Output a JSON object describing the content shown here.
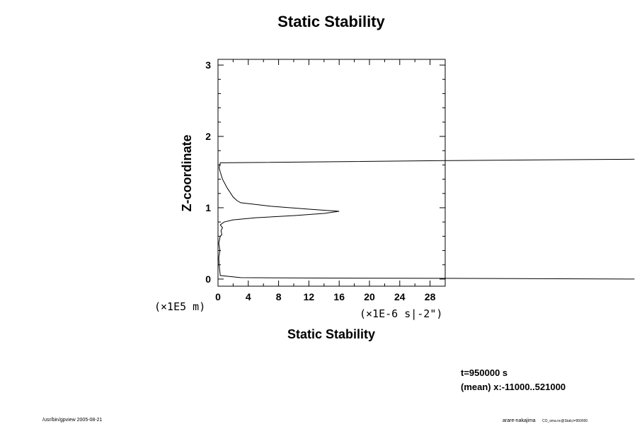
{
  "chart_data": {
    "type": "line",
    "title": "Static Stability",
    "xlabel": "Static Stability",
    "ylabel": "Z-coordinate",
    "x_unit_label": "(×1E-6 s|-2\")",
    "y_unit_label": "(×1E5 m)",
    "xlim": [
      0,
      30
    ],
    "ylim": [
      -0.1,
      3.08
    ],
    "x_ticks": [
      0,
      4,
      8,
      12,
      16,
      20,
      24,
      28
    ],
    "x_tick_labels": [
      "0",
      "4",
      "8",
      "12",
      "16",
      "20",
      "24",
      "28"
    ],
    "y_ticks": [
      0,
      1,
      2,
      3
    ],
    "y_tick_labels": [
      "0",
      "1",
      "2",
      "3"
    ],
    "grid": false,
    "series": [
      {
        "x": [
          55,
          30,
          12,
          3,
          0.3,
          0.15,
          0.1,
          0.25,
          0.1,
          0.2,
          0.3,
          0.5,
          0.4,
          0.6,
          0.3,
          0.8,
          2.0,
          5.0,
          10.0,
          14.0,
          16.0,
          12.0,
          7.0,
          3.0,
          2.5,
          2.0,
          1.2,
          0.6,
          0.3,
          0.15,
          0.3,
          30,
          55
        ],
        "y": [
          0.0,
          0.01,
          0.015,
          0.02,
          0.05,
          0.2,
          0.3,
          0.4,
          0.5,
          0.55,
          0.6,
          0.62,
          0.68,
          0.72,
          0.76,
          0.8,
          0.83,
          0.86,
          0.89,
          0.92,
          0.95,
          0.98,
          1.02,
          1.07,
          1.1,
          1.15,
          1.28,
          1.4,
          1.5,
          1.56,
          1.63,
          1.66,
          1.68
        ]
      }
    ]
  },
  "info": {
    "time": "t=950000 s",
    "mean": "(mean) x:-11000..521000"
  },
  "footer": {
    "left": "/usr/bin/gpview 2005-08-21",
    "right": "arare-nakajima",
    "right_small": "CO_sma.nc@Stab,t=950000"
  }
}
